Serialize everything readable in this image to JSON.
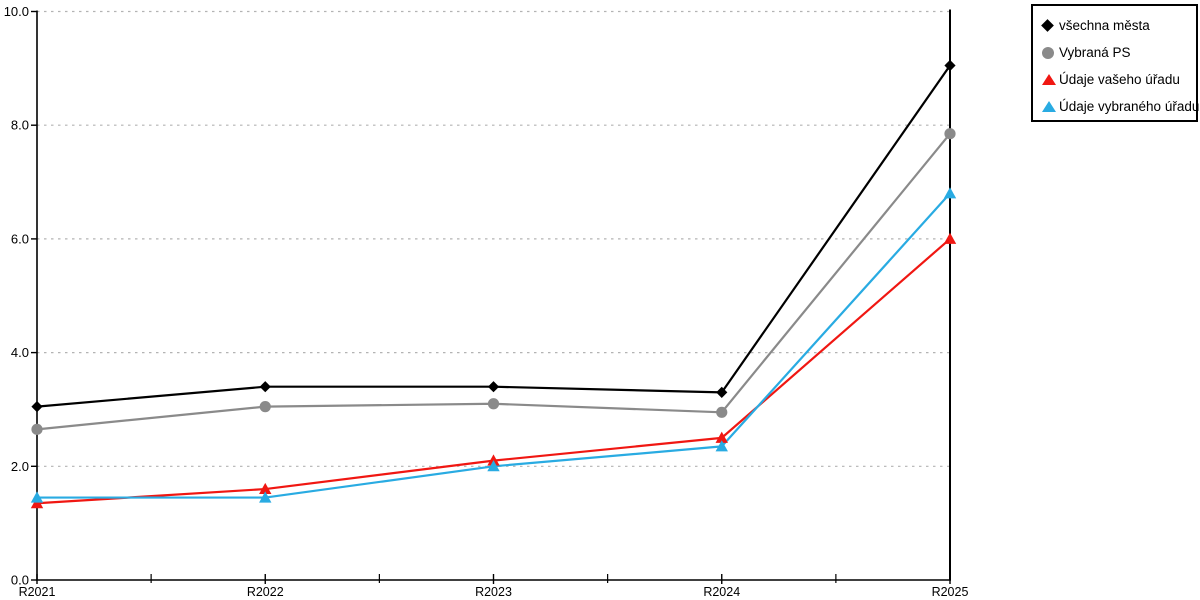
{
  "chart_data": {
    "type": "line",
    "title": "",
    "xlabel": "",
    "ylabel": "",
    "categories": [
      "R2021",
      "R2022",
      "R2023",
      "R2024",
      "R2025"
    ],
    "series": [
      {
        "name": "všechna města",
        "color": "#000000",
        "marker": "diamond",
        "values": [
          3.05,
          3.4,
          3.4,
          3.3,
          9.05
        ]
      },
      {
        "name": "Vybraná PS",
        "color": "#8a8a8a",
        "marker": "circle",
        "values": [
          2.65,
          3.05,
          3.1,
          2.95,
          7.85
        ]
      },
      {
        "name": "Údaje vašeho úřadu",
        "color": "#f01712",
        "marker": "triangle",
        "values": [
          1.35,
          1.6,
          2.1,
          2.5,
          6.0
        ]
      },
      {
        "name": "Údaje vybraného úřadu",
        "color": "#29abe2",
        "marker": "triangle",
        "values": [
          1.45,
          1.45,
          2.0,
          2.35,
          6.8
        ]
      }
    ],
    "ylim": [
      0,
      10
    ],
    "yticks": [
      0,
      2,
      4,
      6,
      8,
      10
    ],
    "ytick_labels": [
      "0.0",
      "2.0",
      "4.0",
      "6.0",
      "8.0",
      "10.0"
    ],
    "grid": {
      "horizontal": true,
      "style": "dotted",
      "color": "#b3b3b3"
    },
    "axis_color": "#000000",
    "legend": {
      "position": "top-right",
      "border_color": "#000000",
      "background": "#ffffff"
    }
  }
}
